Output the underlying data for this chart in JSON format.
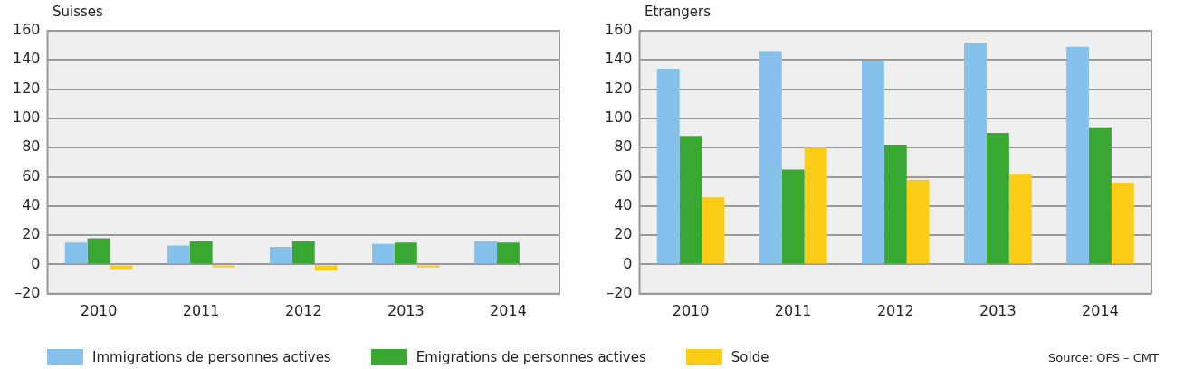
{
  "chart_data": [
    {
      "type": "bar",
      "title": "Suisses",
      "categories": [
        "2010",
        "2011",
        "2012",
        "2013",
        "2014"
      ],
      "series": [
        {
          "name": "Immigrations de personnes actives",
          "color": "#85c1ea",
          "values": [
            15,
            13,
            12,
            14,
            16
          ]
        },
        {
          "name": "Emigrations de personnes actives",
          "color": "#38a832",
          "values": [
            18,
            16,
            16,
            15,
            15
          ]
        },
        {
          "name": "Solde",
          "color": "#fccd16",
          "values": [
            -3,
            -2,
            -4,
            -2,
            null
          ]
        }
      ],
      "ylim": [
        -20,
        160
      ],
      "yticks": [
        {
          "value": -20,
          "label": "–20"
        },
        0,
        20,
        40,
        60,
        80,
        100,
        120,
        140,
        160
      ],
      "grid": "y",
      "legend": "bottom"
    },
    {
      "type": "bar",
      "title": "Etrangers",
      "categories": [
        "2010",
        "2011",
        "2012",
        "2013",
        "2014"
      ],
      "series": [
        {
          "color": "#85c1ea",
          "values": [
            134,
            146,
            139,
            152,
            149
          ]
        },
        {
          "color": "#38a832",
          "values": [
            88,
            65,
            82,
            90,
            94
          ]
        },
        {
          "color": "#fccd16",
          "values": [
            46,
            80,
            58,
            62,
            56
          ]
        }
      ],
      "ylim": [
        -20,
        160
      ],
      "yticks": [
        {
          "value": -20,
          "label": "–20"
        },
        0,
        20,
        40,
        60,
        80,
        100,
        120,
        140,
        160
      ],
      "grid": "y",
      "annotations": [
        "Source: OFS – CMT"
      ]
    }
  ]
}
